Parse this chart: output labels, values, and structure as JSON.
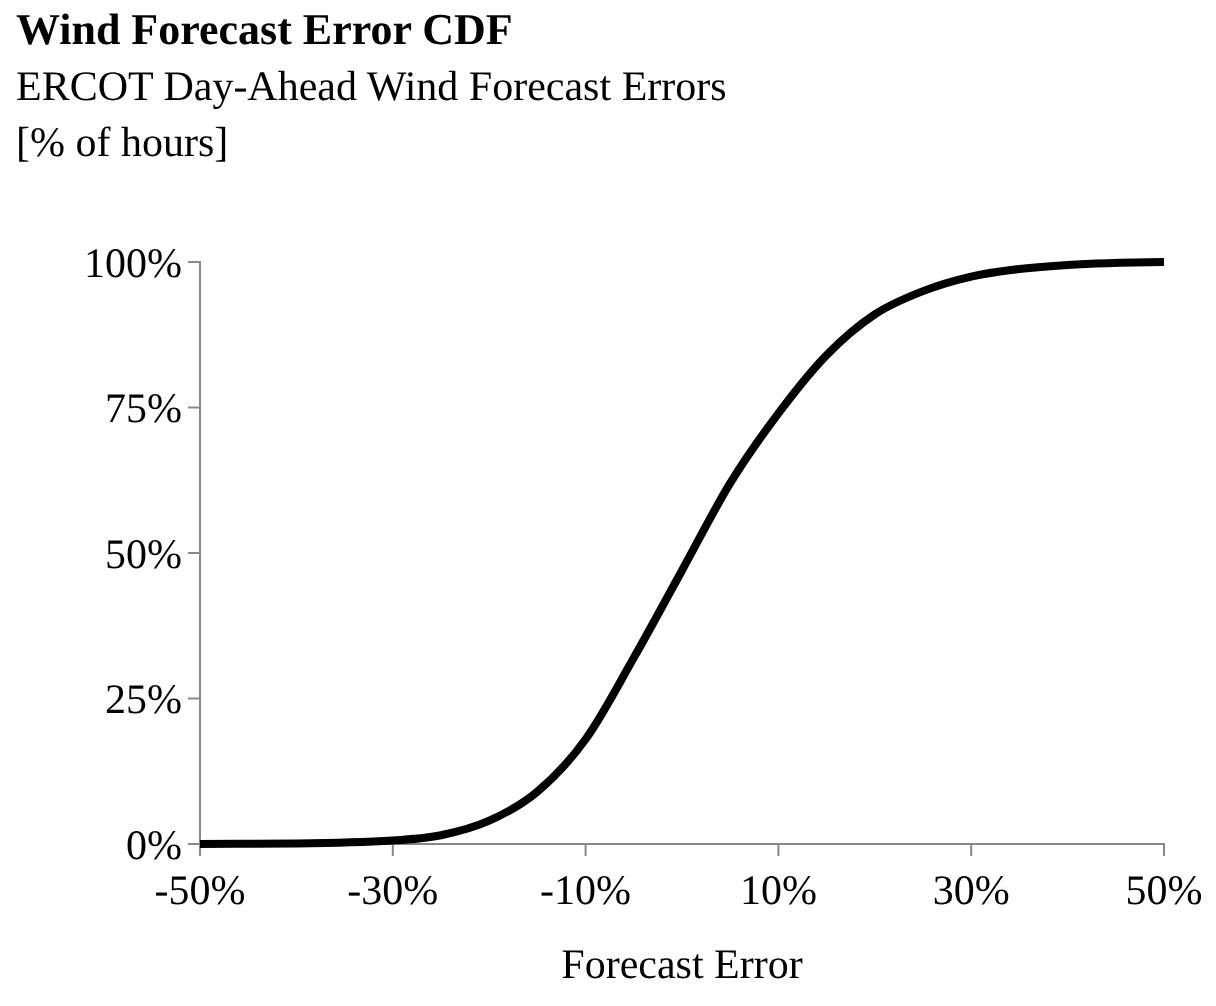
{
  "chart_data": {
    "type": "line",
    "title": "Wind Forecast Error CDF",
    "subtitle": "ERCOT Day-Ahead Wind Forecast Errors",
    "ylabel": "[% of hours]",
    "xlabel": "Forecast Error",
    "x": [
      -50,
      -40,
      -30,
      -25,
      -20,
      -15,
      -10,
      -5,
      0,
      5,
      10,
      15,
      20,
      25,
      30,
      35,
      40,
      50
    ],
    "series": [
      {
        "color": "#000000",
        "values": [
          0,
          0.1,
          0.6,
          1.5,
          4,
          9,
          18,
          32,
          47,
          62,
          74,
          84,
          91,
          95,
          97.5,
          98.8,
          99.5,
          100
        ]
      }
    ],
    "xlim": [
      -50,
      50
    ],
    "xticks": [
      {
        "value": -50,
        "label": "-50%"
      },
      {
        "value": -30,
        "label": "-30%"
      },
      {
        "value": -10,
        "label": "-10%"
      },
      {
        "value": 10,
        "label": "10%"
      },
      {
        "value": 30,
        "label": "30%"
      },
      {
        "value": 50,
        "label": "50%"
      }
    ],
    "ylim": [
      0,
      100
    ],
    "yticks": [
      {
        "value": 0,
        "label": "0%"
      },
      {
        "value": 25,
        "label": "25%"
      },
      {
        "value": 50,
        "label": "50%"
      },
      {
        "value": 75,
        "label": "75%"
      },
      {
        "value": 100,
        "label": "100%"
      }
    ],
    "grid": false,
    "marker": "none",
    "line_style": "solid"
  }
}
